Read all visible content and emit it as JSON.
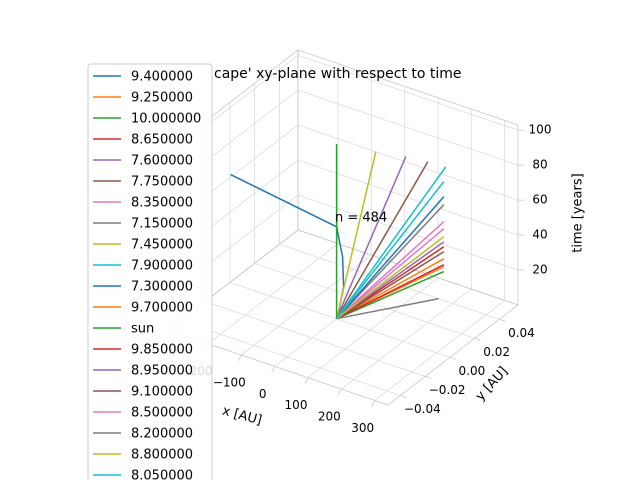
{
  "chart_data": {
    "type": "line3d",
    "title": "cape' xy-plane with respect to time",
    "xlabel": "x [AU]",
    "ylabel": "y [AU]",
    "zlabel": "time [years]",
    "annotation": "n = 484",
    "xlim": [
      -320,
      340
    ],
    "ylim": [
      -0.05,
      0.055
    ],
    "zlim": [
      0,
      103
    ],
    "xticks": [
      {
        "value": -200,
        "label": "−200"
      },
      {
        "value": -100,
        "label": "−100"
      },
      0,
      100,
      200,
      300
    ],
    "yticks": [
      {
        "value": -0.04,
        "label": "−0.04"
      },
      {
        "value": -0.02,
        "label": "−0.02"
      },
      {
        "value": 0,
        "label": "0.00"
      },
      {
        "value": 0.02,
        "label": "0.02"
      },
      0.04
    ],
    "zticks": [
      20,
      40,
      60,
      80,
      100
    ],
    "grid": true,
    "series": [
      {
        "name": "9.400000",
        "color": "#1f77b4",
        "x": [
          -318,
          0,
          18,
          21,
          6,
          0
        ],
        "y": [
          0,
          0,
          0,
          0,
          0,
          0
        ],
        "z": [
          61.8,
          52.6,
          36.6,
          19.7,
          4,
          0
        ]
      },
      {
        "name": "9.250000",
        "color": "#ff7f0e",
        "x": [
          0,
          173
        ],
        "y": [
          0,
          0.04
        ],
        "z": [
          0,
          19.2
        ]
      },
      {
        "name": "10.000000",
        "color": "#2ca02c",
        "x": [
          0,
          173
        ],
        "y": [
          0,
          0.04
        ],
        "z": [
          0,
          16.4
        ]
      },
      {
        "name": "8.650000",
        "color": "#d62728",
        "x": [
          0,
          173
        ],
        "y": [
          0,
          0.04
        ],
        "z": [
          0,
          30.7
        ]
      },
      {
        "name": "7.600000",
        "color": "#9467bd",
        "x": [
          0,
          59
        ],
        "y": [
          0,
          0.04
        ],
        "z": [
          0,
          74.8
        ]
      },
      {
        "name": "7.750000",
        "color": "#8c564b",
        "x": [
          0,
          125
        ],
        "y": [
          0,
          0.04
        ],
        "z": [
          0,
          76.2
        ]
      },
      {
        "name": "8.350000",
        "color": "#e377c2",
        "x": [
          0,
          173
        ],
        "y": [
          0,
          0.04
        ],
        "z": [
          0,
          45
        ]
      },
      {
        "name": "7.150000",
        "color": "#7f7f7f",
        "x": [
          0,
          173
        ],
        "y": [
          0,
          0.04
        ],
        "z": [
          0,
          54.7
        ]
      },
      {
        "name": "7.450000",
        "color": "#bcbd22",
        "x": [
          0,
          -31
        ],
        "y": [
          0,
          0.04
        ],
        "z": [
          0,
          71.8
        ]
      },
      {
        "name": "7.900000",
        "color": "#17becf",
        "x": [
          0,
          179
        ],
        "y": [
          0,
          0.04
        ],
        "z": [
          0,
          76.8
        ]
      },
      {
        "name": "7.300000",
        "color": "#1f77b4",
        "x": [
          0,
          173
        ],
        "y": [
          0,
          0.04
        ],
        "z": [
          0,
          59.3
        ]
      },
      {
        "name": "9.700000",
        "color": "#ff7f0e",
        "x": [
          0,
          173
        ],
        "y": [
          0,
          0.04
        ],
        "z": [
          0,
          23.8
        ]
      },
      {
        "name": "sun",
        "color": "#2ca02c",
        "x": [
          0,
          0
        ],
        "y": [
          0,
          0
        ],
        "z": [
          0,
          100
        ]
      },
      {
        "name": "9.850000",
        "color": "#d62728",
        "x": [
          0,
          173
        ],
        "y": [
          0,
          0.04
        ],
        "z": [
          0,
          20.4
        ]
      },
      {
        "name": "8.950000",
        "color": "#9467bd",
        "x": [
          0,
          173
        ],
        "y": [
          0,
          0.04
        ],
        "z": [
          0,
          33.5
        ]
      },
      {
        "name": "9.100000",
        "color": "#8c564b",
        "x": [
          0,
          173
        ],
        "y": [
          0,
          0.04
        ],
        "z": [
          0,
          27.8
        ]
      },
      {
        "name": "8.500000",
        "color": "#e377c2",
        "x": [
          0,
          173
        ],
        "y": [
          0,
          0.04
        ],
        "z": [
          0,
          41
        ]
      },
      {
        "name": "8.200000",
        "color": "#7f7f7f",
        "x": [
          0,
          158
        ],
        "y": [
          0,
          0.04
        ],
        "z": [
          0,
          0
        ]
      },
      {
        "name": "8.800000",
        "color": "#bcbd22",
        "x": [
          0,
          173
        ],
        "y": [
          0,
          0.04
        ],
        "z": [
          0,
          36.4
        ]
      },
      {
        "name": "8.050000",
        "color": "#17becf",
        "x": [
          0,
          173
        ],
        "y": [
          0,
          0.04
        ],
        "z": [
          0,
          67.9
        ]
      }
    ]
  }
}
